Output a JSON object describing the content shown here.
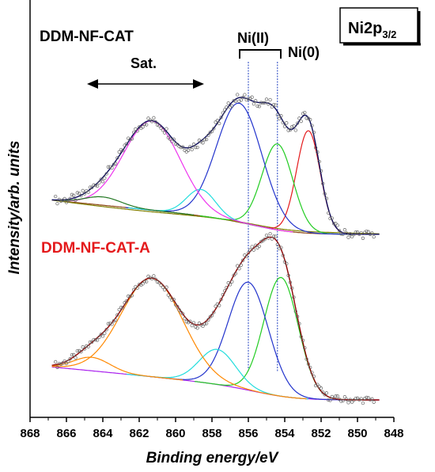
{
  "chart_data": {
    "type": "line",
    "xlabel": "Binding energy/eV",
    "ylabel": "Intensity/arb. units",
    "xlim": [
      868,
      848
    ],
    "x_reversed": true,
    "xticks": [
      868,
      866,
      864,
      862,
      860,
      858,
      856,
      854,
      852,
      850,
      848
    ],
    "yticks_shown": false,
    "box_label": {
      "main": "Ni2p",
      "sub": "3/2"
    },
    "annotations": {
      "sat": "Sat.",
      "ni2": "Ni(II)",
      "ni0": "Ni(0)"
    },
    "reference_lines": [
      856.0,
      854.4
    ],
    "panels": [
      {
        "label": "DDM-NF-CAT",
        "label_color": "#000000",
        "y_range": [
          0,
          1.15
        ],
        "background": {
          "start": 0.24,
          "end": 0.02,
          "shoulder_center": 861,
          "shoulder_width": 3.0
        },
        "peaks": [
          {
            "name": "Ni0",
            "center": 852.7,
            "height": 0.62,
            "width": 0.65,
            "color": "#e41a1c"
          },
          {
            "name": "NiII-a",
            "center": 854.4,
            "height": 0.52,
            "width": 0.85,
            "color": "#22cc22"
          },
          {
            "name": "NiII-b",
            "center": 856.5,
            "height": 0.72,
            "width": 1.25,
            "color": "#2233cc"
          },
          {
            "name": "sat-1",
            "center": 858.6,
            "height": 0.16,
            "width": 0.8,
            "color": "#22dddd"
          },
          {
            "name": "sat-2",
            "center": 861.3,
            "height": 0.54,
            "width": 1.55,
            "color": "#ee33ee"
          },
          {
            "name": "sat-3",
            "center": 864.0,
            "height": 0.05,
            "width": 1.0,
            "color": "#227722"
          }
        ],
        "background_colors": [
          "#8b4513",
          "#7f7f00"
        ],
        "envelope_color": "#0a0a5a"
      },
      {
        "label": "DDM-NF-CAT-A",
        "label_color": "#e41a1c",
        "y_range": [
          0,
          1.35
        ],
        "background": {
          "start": 0.26,
          "end": 0.0,
          "shoulder_center": 861,
          "shoulder_width": 3.0
        },
        "peaks": [
          {
            "name": "NiII-a",
            "center": 854.2,
            "height": 0.88,
            "width": 0.95,
            "color": "#22cc22"
          },
          {
            "name": "NiII-b",
            "center": 856.0,
            "height": 0.8,
            "width": 1.1,
            "color": "#2233cc"
          },
          {
            "name": "sat-1",
            "center": 857.7,
            "height": 0.26,
            "width": 1.0,
            "color": "#22dddd"
          },
          {
            "name": "sat-2",
            "center": 861.3,
            "height": 0.73,
            "width": 1.7,
            "color": "#ff8800"
          },
          {
            "name": "sat-3",
            "center": 864.6,
            "height": 0.1,
            "width": 1.0,
            "color": "#ff8800"
          }
        ],
        "background_colors": [
          "#aa22ee"
        ],
        "envelope_color": "#8b0000"
      }
    ]
  }
}
